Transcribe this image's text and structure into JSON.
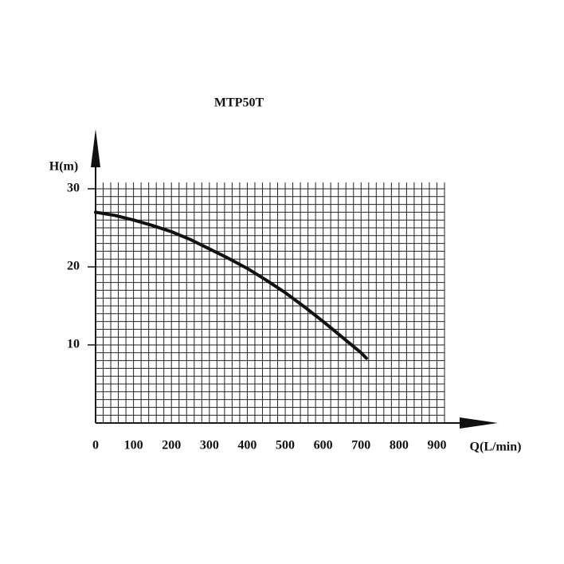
{
  "chart_data": {
    "type": "line",
    "title": "MTP50T",
    "x_label": "Q(L/min)",
    "y_label": "H(m)",
    "x": [
      0,
      50,
      100,
      150,
      200,
      250,
      300,
      350,
      400,
      450,
      500,
      550,
      600,
      650,
      700,
      714
    ],
    "series": [
      {
        "name": "MTP50T",
        "color": "#111111",
        "values": [
          27,
          26.6,
          26,
          25.3,
          24.5,
          23.5,
          22.3,
          21.1,
          19.8,
          18.3,
          16.7,
          14.9,
          13,
          11,
          9,
          8.3
        ]
      }
    ],
    "xlim": [
      0,
      920
    ],
    "ylim": [
      0,
      30
    ],
    "xticks": [
      0,
      100,
      200,
      300,
      400,
      500,
      600,
      700,
      800,
      900
    ],
    "yticks": [
      10,
      20,
      30
    ],
    "grid": true
  }
}
